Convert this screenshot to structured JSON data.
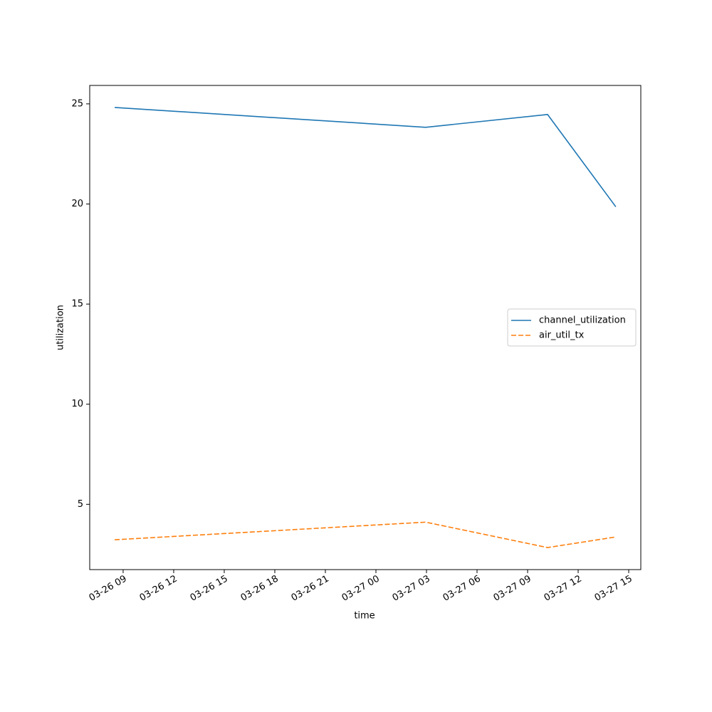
{
  "chart_data": {
    "type": "line",
    "x_label": "time",
    "y_label": "utilization",
    "x": [
      "03-26 08:30",
      "03-27 02:57",
      "03-27 10:11",
      "03-27 14:14"
    ],
    "series": [
      {
        "name": "channel_utilization",
        "color": "#1f77b4",
        "dash": "solid",
        "values": [
          24.82,
          23.83,
          24.47,
          19.86
        ]
      },
      {
        "name": "air_util_tx",
        "color": "#ff7f0e",
        "dash": "dashed",
        "values": [
          3.23,
          4.11,
          2.84,
          3.37
        ]
      }
    ],
    "xlim": [
      "03-26 07:01",
      "03-27 15:43"
    ],
    "xticks": [
      "03-26 09",
      "03-26 12",
      "03-26 15",
      "03-26 18",
      "03-26 21",
      "03-27 00",
      "03-27 03",
      "03-27 06",
      "03-27 09",
      "03-27 12",
      "03-27 15"
    ],
    "ylim": [
      1.74,
      25.92
    ],
    "yticks": [
      5,
      10,
      15,
      20,
      25
    ],
    "legend": "center right",
    "grid": false
  }
}
